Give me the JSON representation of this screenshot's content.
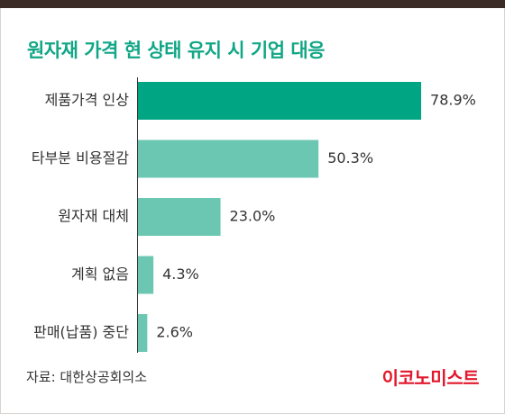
{
  "title": "원자재 가격 현 상태 유지 시 기업 대응",
  "source": "자료: 대한상공회의소",
  "logo": "이코노미스트",
  "colors": {
    "title": "#10a685",
    "highlight_bar": "#00a684",
    "bar": "#6cc7b2",
    "logo": "#e2172d",
    "top_band": "#3a2b26"
  },
  "chart_data": {
    "type": "bar",
    "orientation": "horizontal",
    "categories": [
      "제품가격 인상",
      "타부분 비용절감",
      "원자재 대체",
      "계획 없음",
      "판매(납품) 중단"
    ],
    "values": [
      78.9,
      50.3,
      23.0,
      4.3,
      2.6
    ],
    "value_labels": [
      "78.9%",
      "50.3%",
      "23.0%",
      "4.3%",
      "2.6%"
    ],
    "unit": "%",
    "highlight_index": 0,
    "xlim": [
      0,
      100
    ],
    "grid": false,
    "legend": "none"
  }
}
